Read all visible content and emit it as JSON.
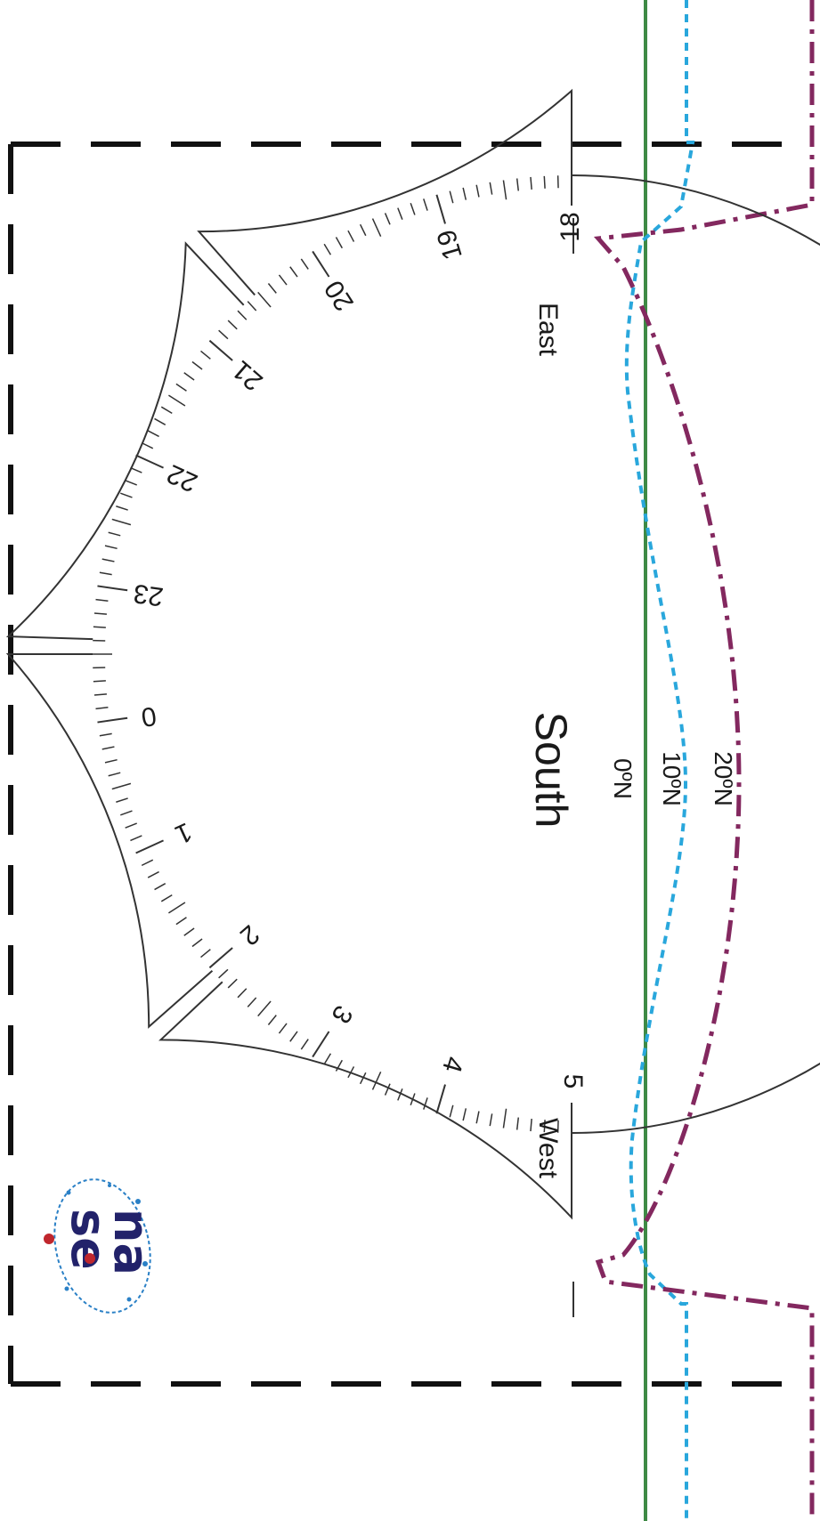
{
  "colors": {
    "frame": "#111111",
    "dial": "#333333",
    "lat_0": "#3e8a45",
    "lat_10": "#29a7dc",
    "lat_20": "#83285f",
    "logo_blue": "#22226a",
    "logo_red": "#c0272d",
    "logo_dots": "#2a80c6"
  },
  "hour_labels": [
    "5",
    "4",
    "3",
    "2",
    "1",
    "0",
    "23",
    "22",
    "21",
    "20",
    "19",
    "18"
  ],
  "direction_labels": {
    "east": "East",
    "south": "South",
    "west": "West"
  },
  "latitude_labels": {
    "lat_0": "0ºN",
    "lat_10": "10ºN",
    "lat_20": "20ºN"
  },
  "logo": {
    "text": "nase",
    "icon": "nase-logo-icon"
  }
}
